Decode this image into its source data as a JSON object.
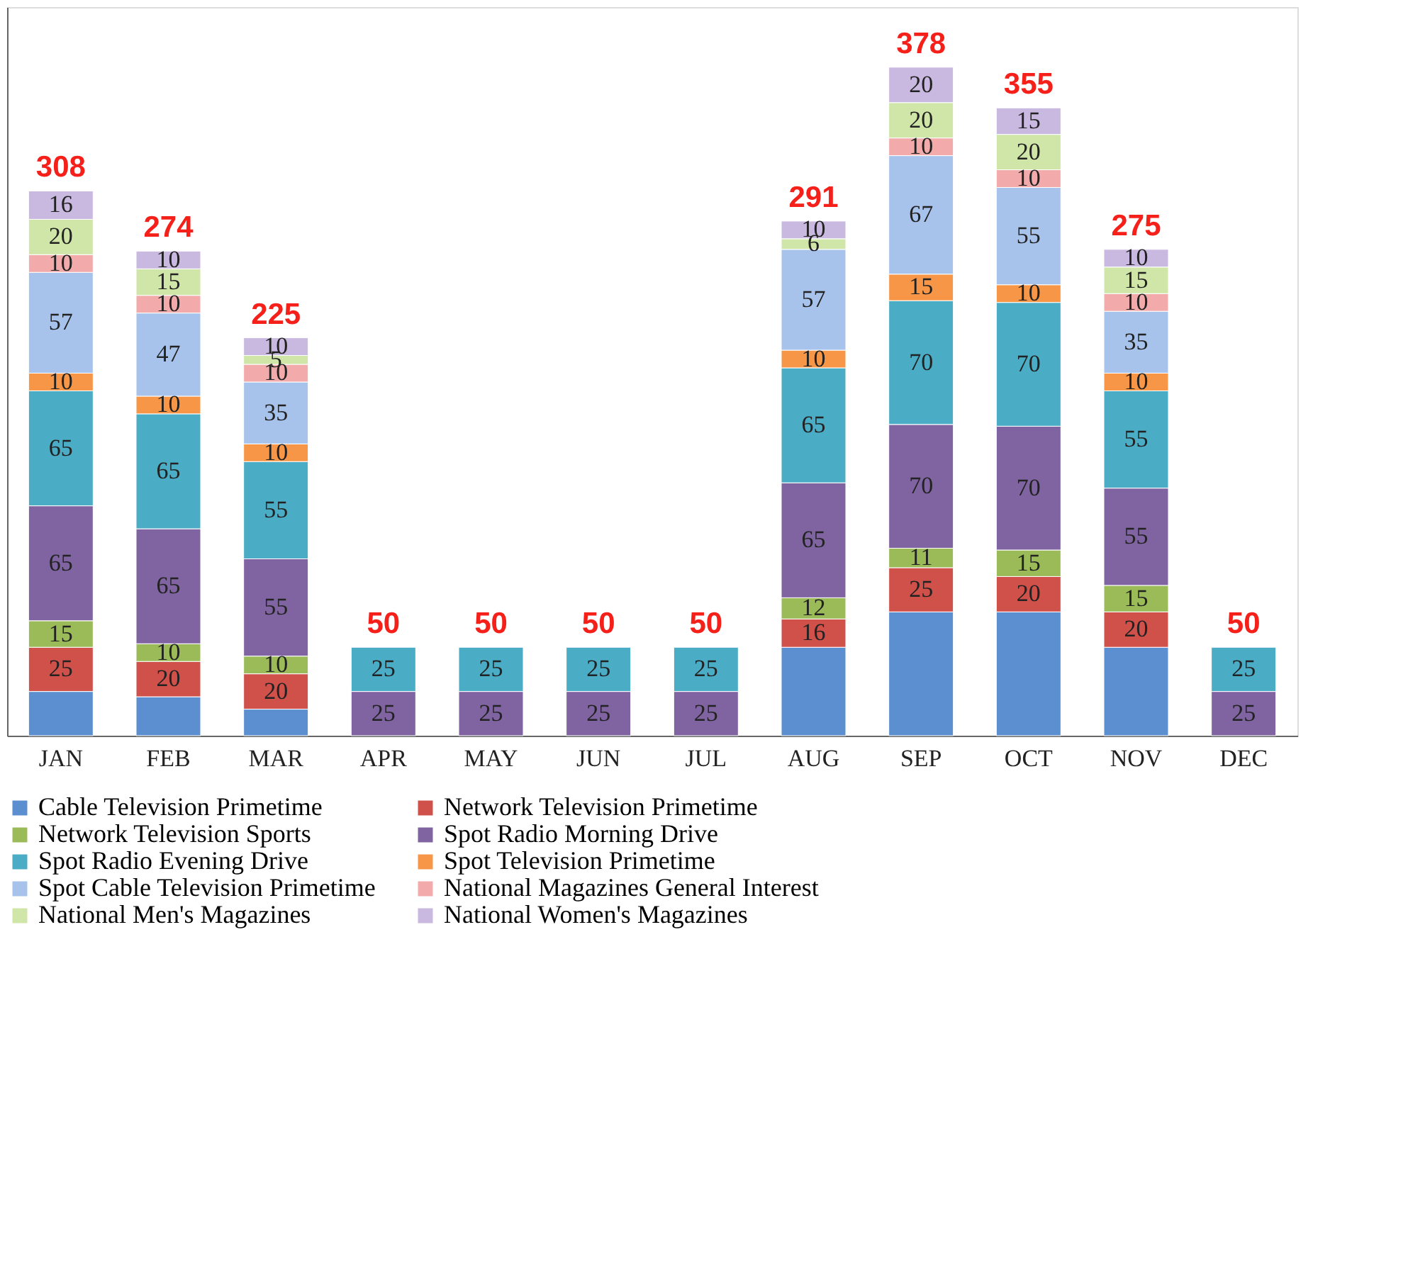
{
  "chart_data": {
    "type": "bar",
    "stacked": true,
    "categories": [
      "JAN",
      "FEB",
      "MAR",
      "APR",
      "MAY",
      "JUN",
      "JUL",
      "AUG",
      "SEP",
      "OCT",
      "NOV",
      "DEC"
    ],
    "series": [
      {
        "name": "Cable Television Primetime",
        "color": "#5b8fd0",
        "values": [
          25,
          22,
          15,
          null,
          null,
          null,
          null,
          50,
          70,
          70,
          50,
          null
        ],
        "value_labels": [
          null,
          null,
          null,
          null,
          null,
          null,
          null,
          null,
          null,
          null,
          null,
          null
        ]
      },
      {
        "name": "Network Television Primetime",
        "color": "#d0504a",
        "values": [
          25,
          20,
          20,
          null,
          null,
          null,
          null,
          16,
          25,
          20,
          20,
          null
        ]
      },
      {
        "name": "Network Television Sports",
        "color": "#9bbb59",
        "values": [
          15,
          10,
          10,
          null,
          null,
          null,
          null,
          12,
          11,
          15,
          15,
          null
        ]
      },
      {
        "name": "Spot Radio Morning Drive",
        "color": "#8064a2",
        "values": [
          65,
          65,
          55,
          25,
          25,
          25,
          25,
          65,
          70,
          70,
          55,
          25
        ]
      },
      {
        "name": "Spot Radio Evening Drive",
        "color": "#4bacc6",
        "values": [
          65,
          65,
          55,
          25,
          25,
          25,
          25,
          65,
          70,
          70,
          55,
          25
        ]
      },
      {
        "name": "Spot Television Primetime",
        "color": "#f79646",
        "values": [
          10,
          10,
          10,
          null,
          null,
          null,
          null,
          10,
          15,
          10,
          10,
          null
        ]
      },
      {
        "name": "Spot Cable Television Primetime",
        "color": "#a7c3ec",
        "values": [
          57,
          47,
          35,
          null,
          null,
          null,
          null,
          57,
          67,
          55,
          35,
          null
        ]
      },
      {
        "name": "National Magazines General Interest",
        "color": "#f2aaaa",
        "values": [
          10,
          10,
          10,
          null,
          null,
          null,
          null,
          null,
          10,
          10,
          10,
          null
        ]
      },
      {
        "name": "National Men's Magazines",
        "color": "#cfe6a8",
        "values": [
          20,
          15,
          5,
          null,
          null,
          null,
          null,
          6,
          20,
          20,
          15,
          null
        ]
      },
      {
        "name": "National Women's Magazines",
        "color": "#c9b8e0",
        "values": [
          16,
          10,
          10,
          null,
          null,
          null,
          null,
          10,
          20,
          15,
          10,
          null
        ]
      }
    ],
    "totals": [
      "308",
      "274",
      "225",
      "50",
      "50",
      "50",
      "50",
      "291",
      "378",
      "355",
      "275",
      "50"
    ],
    "ylim": [
      0,
      412
    ],
    "tick_labels": "x",
    "grid": false,
    "legend": "bottom",
    "data_labels": true
  }
}
